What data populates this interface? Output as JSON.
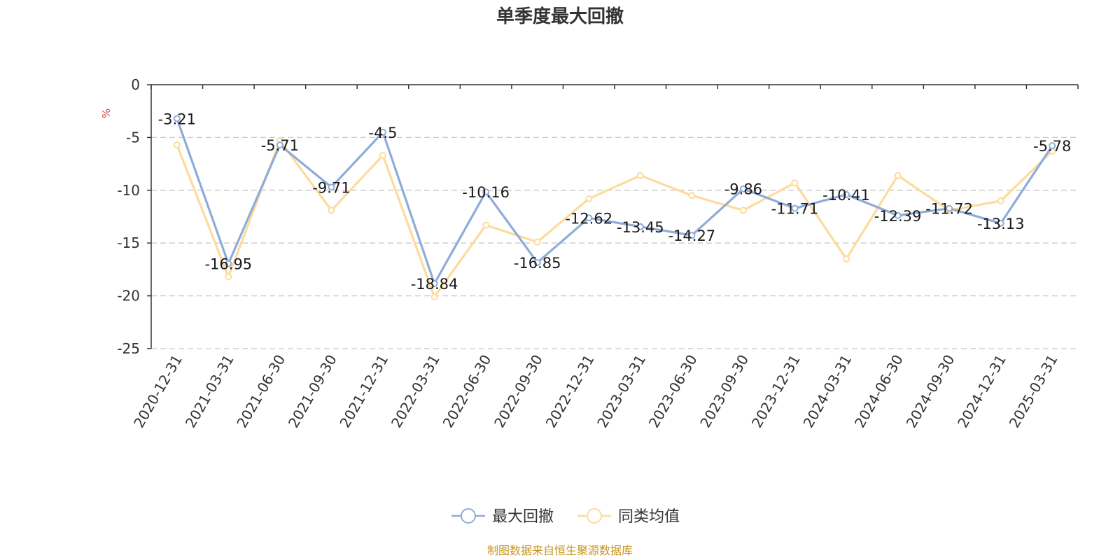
{
  "chart_data": {
    "type": "line",
    "title": "单季度最大回撤",
    "ylabel": "%",
    "ylim": [
      -25,
      0
    ],
    "yticks": [
      0,
      -5,
      -10,
      -15,
      -20,
      -25
    ],
    "grid": true,
    "legend_position": "bottom",
    "categories": [
      "2020-12-31",
      "2021-03-31",
      "2021-06-30",
      "2021-09-30",
      "2021-12-31",
      "2022-03-31",
      "2022-06-30",
      "2022-09-30",
      "2022-12-31",
      "2023-03-31",
      "2023-06-30",
      "2023-09-30",
      "2023-12-31",
      "2024-03-31",
      "2024-06-30",
      "2024-09-30",
      "2024-12-31",
      "2025-03-31"
    ],
    "series": [
      {
        "name": "最大回撤",
        "color": "#8eacd9",
        "values": [
          -3.21,
          -16.95,
          -5.71,
          -9.71,
          -4.5,
          -18.84,
          -10.16,
          -16.85,
          -12.62,
          -13.45,
          -14.27,
          -9.86,
          -11.71,
          -10.41,
          -12.39,
          -11.72,
          -13.13,
          -5.78
        ],
        "show_labels": true
      },
      {
        "name": "同类均值",
        "color": "#fddb9c",
        "values": [
          -5.7,
          -18.2,
          -5.3,
          -11.9,
          -6.7,
          -20.1,
          -13.3,
          -14.9,
          -10.8,
          -8.6,
          -10.5,
          -11.9,
          -9.3,
          -16.5,
          -8.6,
          -11.9,
          -11.0,
          -6.3
        ],
        "show_labels": false
      }
    ],
    "source": "制图数据来自恒生聚源数据库"
  }
}
